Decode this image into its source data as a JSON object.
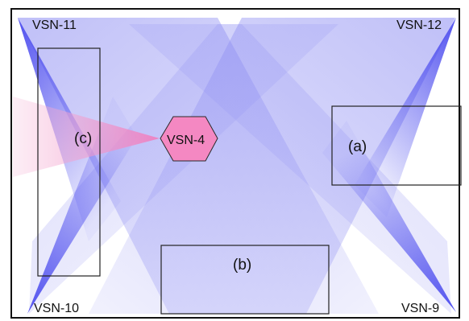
{
  "colors": {
    "beam": "#4a4af0",
    "beam_light": "#a9aaf5",
    "hex_fill": "#f488c2",
    "hex_stroke": "#2a2a2a",
    "pink_beam": "#f59ac8",
    "border": "#111111",
    "box": "#222222"
  },
  "nodes": {
    "vsn11": {
      "label": "VSN-11"
    },
    "vsn12": {
      "label": "VSN-12"
    },
    "vsn10": {
      "label": "VSN-10"
    },
    "vsn9": {
      "label": "VSN-9"
    },
    "vsn4": {
      "label": "VSN-4"
    }
  },
  "regions": {
    "a": {
      "label": "(a)"
    },
    "b": {
      "label": "(b)"
    },
    "c": {
      "label": "(c)"
    }
  }
}
